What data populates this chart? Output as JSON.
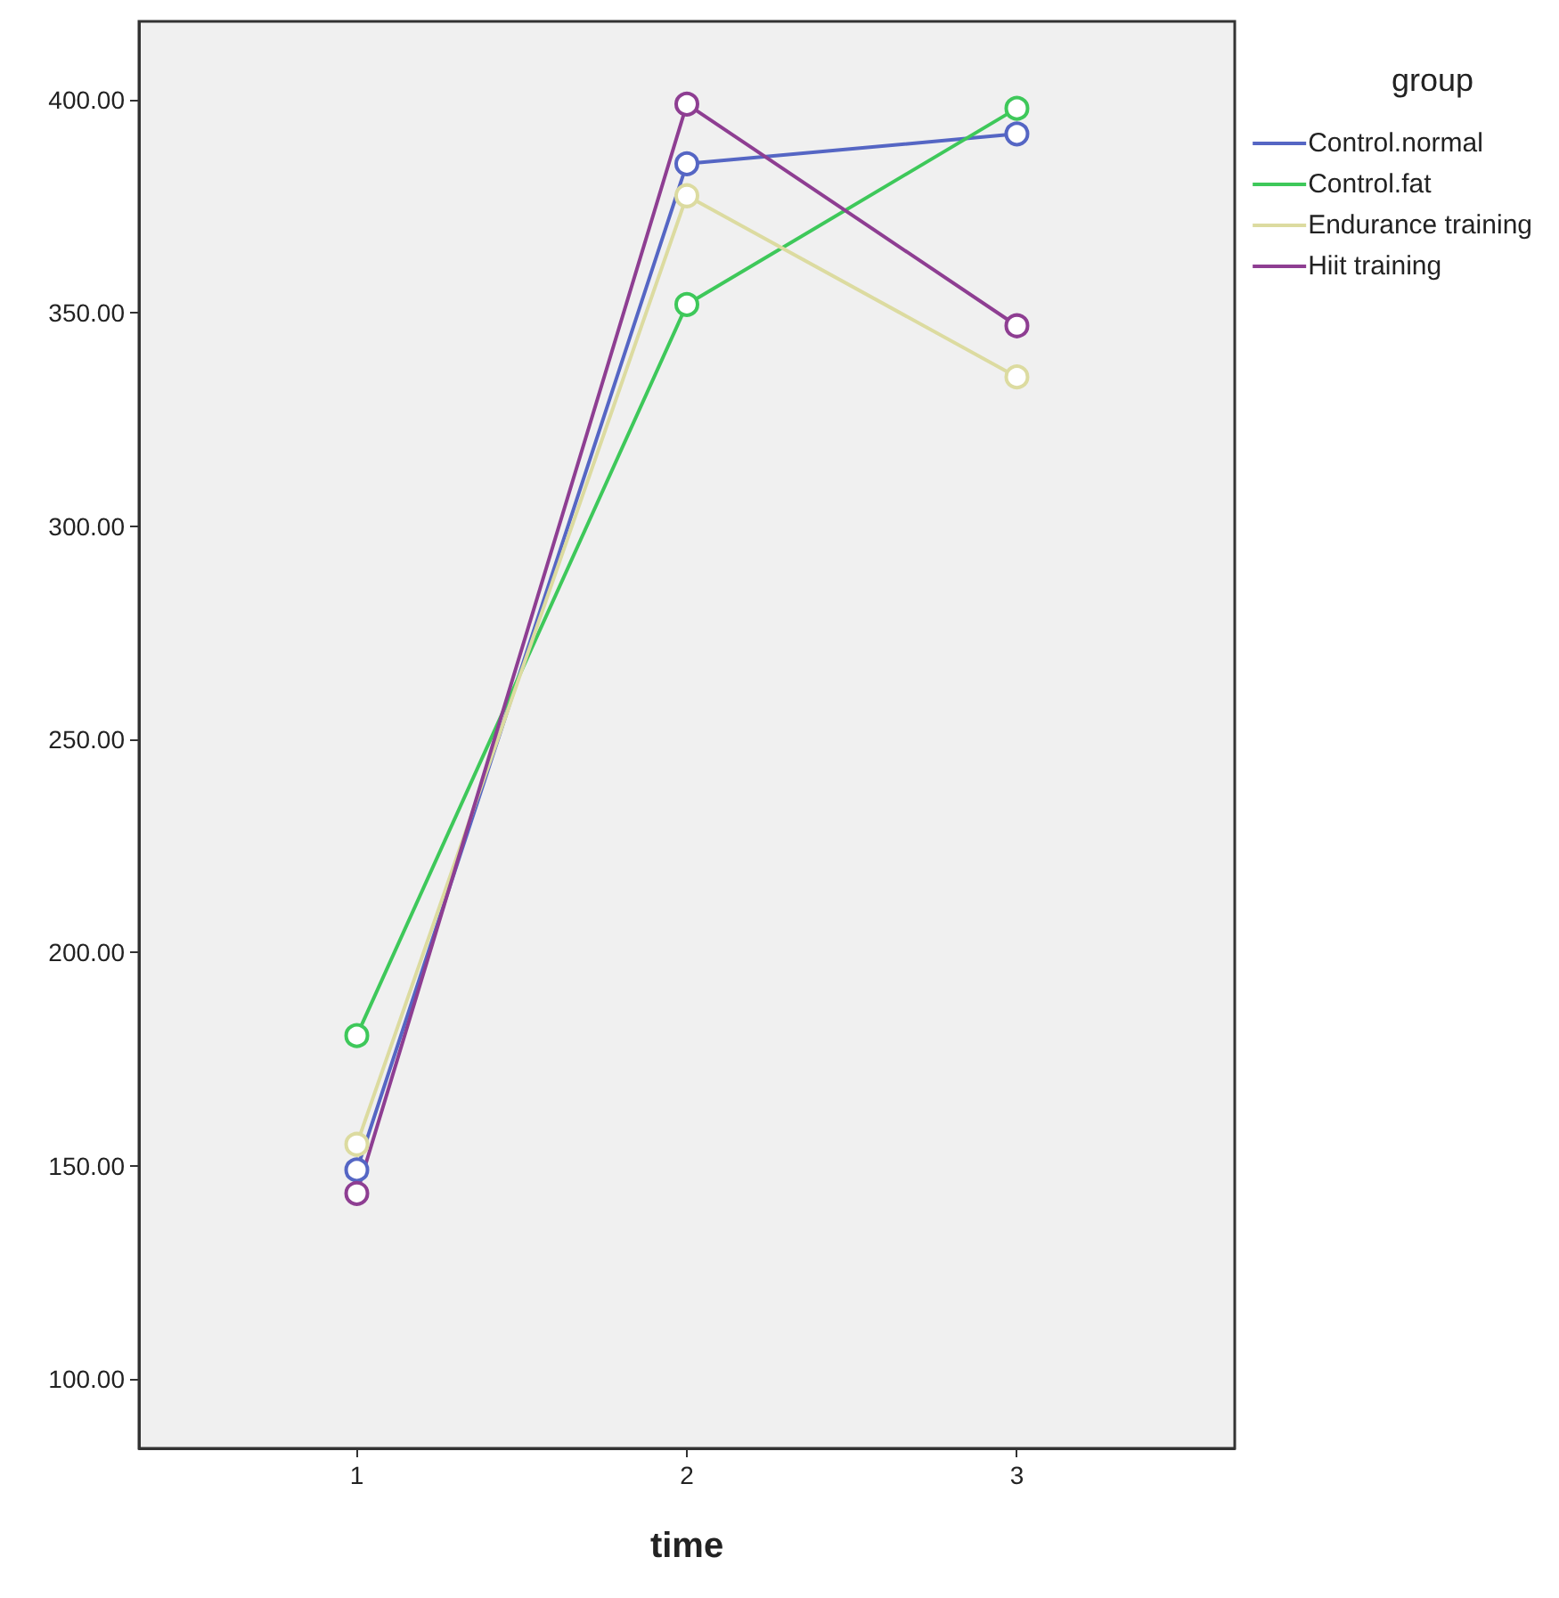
{
  "chart_data": {
    "type": "line",
    "xlabel": "time",
    "legend_title": "group",
    "x": [
      1,
      2,
      3
    ],
    "series": [
      {
        "name": "Control.normal",
        "color": "#5566c4",
        "values": [
          149,
          385,
          392
        ]
      },
      {
        "name": "Control.fat",
        "color": "#3ec85a",
        "values": [
          180.5,
          352,
          398
        ]
      },
      {
        "name": "Endurance training",
        "color": "#dcdba0",
        "values": [
          155,
          377.5,
          335
        ]
      },
      {
        "name": "Hiit training",
        "color": "#8e3e92",
        "values": [
          143.5,
          399,
          347
        ]
      }
    ],
    "xlim": [
      0.34,
      3.66
    ],
    "xticks": [
      1,
      2,
      3
    ],
    "ylim": [
      83.7,
      418.4
    ],
    "yticks": [
      {
        "value": 100,
        "label": "100.00"
      },
      {
        "value": 150,
        "label": "150.00"
      },
      {
        "value": 200,
        "label": "200.00"
      },
      {
        "value": 250,
        "label": "250.00"
      },
      {
        "value": 300,
        "label": "300.00"
      },
      {
        "value": 350,
        "label": "350.00"
      },
      {
        "value": 400,
        "label": "400.00"
      }
    ],
    "marker": "circle",
    "legend": "top right",
    "grid": false
  }
}
